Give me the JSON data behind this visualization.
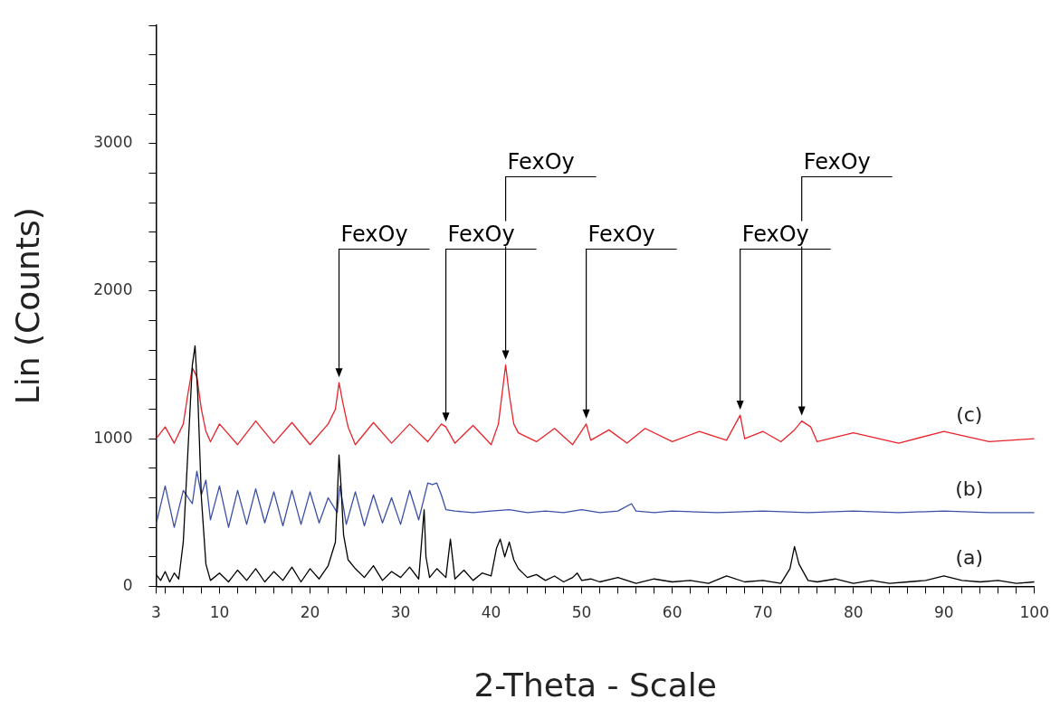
{
  "chart_data": {
    "type": "line",
    "xlabel": "2-Theta - Scale",
    "ylabel": "Lin (Counts)",
    "legend": false,
    "grid": false,
    "marker": "none",
    "line_style": "solid",
    "xlim": [
      3,
      100
    ],
    "ylim": [
      0,
      3800
    ],
    "xticks": [
      3,
      {
        "value": 4,
        "label": null
      },
      {
        "value": 6,
        "label": null
      },
      {
        "value": 8,
        "label": null
      },
      10,
      {
        "value": 12,
        "label": null
      },
      {
        "value": 14,
        "label": null
      },
      {
        "value": 16,
        "label": null
      },
      {
        "value": 18,
        "label": null
      },
      20,
      {
        "value": 22,
        "label": null
      },
      {
        "value": 24,
        "label": null
      },
      {
        "value": 26,
        "label": null
      },
      {
        "value": 28,
        "label": null
      },
      30,
      {
        "value": 32,
        "label": null
      },
      {
        "value": 34,
        "label": null
      },
      {
        "value": 36,
        "label": null
      },
      {
        "value": 38,
        "label": null
      },
      40,
      {
        "value": 42,
        "label": null
      },
      {
        "value": 44,
        "label": null
      },
      {
        "value": 46,
        "label": null
      },
      {
        "value": 48,
        "label": null
      },
      50,
      {
        "value": 52,
        "label": null
      },
      {
        "value": 54,
        "label": null
      },
      {
        "value": 56,
        "label": null
      },
      {
        "value": 58,
        "label": null
      },
      60,
      {
        "value": 62,
        "label": null
      },
      {
        "value": 64,
        "label": null
      },
      {
        "value": 66,
        "label": null
      },
      {
        "value": 68,
        "label": null
      },
      70,
      {
        "value": 72,
        "label": null
      },
      {
        "value": 74,
        "label": null
      },
      {
        "value": 76,
        "label": null
      },
      {
        "value": 78,
        "label": null
      },
      80,
      {
        "value": 82,
        "label": null
      },
      {
        "value": 84,
        "label": null
      },
      {
        "value": 86,
        "label": null
      },
      {
        "value": 88,
        "label": null
      },
      90,
      {
        "value": 92,
        "label": null
      },
      {
        "value": 94,
        "label": null
      },
      {
        "value": 96,
        "label": null
      },
      {
        "value": 98,
        "label": null
      },
      100
    ],
    "yticks": [
      0,
      {
        "value": 200,
        "label": null
      },
      {
        "value": 400,
        "label": null
      },
      {
        "value": 600,
        "label": null
      },
      {
        "value": 800,
        "label": null
      },
      1000,
      {
        "value": 1200,
        "label": null
      },
      {
        "value": 1400,
        "label": null
      },
      {
        "value": 1600,
        "label": null
      },
      {
        "value": 1800,
        "label": null
      },
      2000,
      {
        "value": 2200,
        "label": null
      },
      {
        "value": 2400,
        "label": null
      },
      {
        "value": 2600,
        "label": null
      },
      {
        "value": 2800,
        "label": null
      },
      3000,
      {
        "value": 3200,
        "label": null
      },
      {
        "value": 3400,
        "label": null
      },
      {
        "value": 3600,
        "label": null
      },
      {
        "value": 3800,
        "label": null
      }
    ],
    "annotations": [
      {
        "text": "FexOy",
        "x": 23.2,
        "y": 1380
      },
      {
        "text": "FexOy",
        "x": 35,
        "y": 1080
      },
      {
        "text": "FexOy",
        "x": 41.6,
        "y": 1500
      },
      {
        "text": "FexOy",
        "x": 50.5,
        "y": 1100
      },
      {
        "text": "FexOy",
        "x": 67.5,
        "y": 1160
      },
      {
        "text": "FexOy",
        "x": 74.3,
        "y": 1120
      }
    ],
    "series": [
      {
        "name": "(a)",
        "color": "#000000",
        "x": [
          3,
          3.5,
          4,
          4.5,
          5,
          5.5,
          6,
          6.5,
          7,
          7.3,
          7.6,
          8,
          8.5,
          9,
          10,
          11,
          12,
          13,
          14,
          15,
          16,
          17,
          18,
          19,
          20,
          21,
          22,
          22.8,
          23.2,
          23.4,
          23.7,
          24.2,
          25,
          26,
          27,
          28,
          29,
          30,
          31,
          32,
          32.6,
          32.8,
          33.2,
          34,
          35,
          35.5,
          36,
          37,
          38,
          39,
          40,
          40.6,
          41,
          41.5,
          42,
          42.5,
          43,
          44,
          45,
          46,
          47,
          48,
          49,
          49.5,
          50,
          51,
          52,
          54,
          56,
          58,
          60,
          62,
          64,
          66,
          68,
          70,
          72,
          73,
          73.5,
          74,
          75,
          76,
          78,
          80,
          82,
          84,
          86,
          88,
          90,
          92,
          94,
          96,
          98,
          100
        ],
        "values": [
          80,
          40,
          100,
          30,
          90,
          50,
          300,
          900,
          1500,
          1630,
          1300,
          600,
          150,
          40,
          90,
          30,
          110,
          40,
          120,
          30,
          100,
          40,
          130,
          30,
          120,
          50,
          140,
          300,
          890,
          700,
          350,
          180,
          120,
          60,
          140,
          40,
          100,
          60,
          130,
          50,
          520,
          200,
          60,
          120,
          60,
          320,
          50,
          110,
          40,
          90,
          70,
          260,
          320,
          200,
          300,
          180,
          120,
          60,
          80,
          40,
          70,
          30,
          60,
          90,
          40,
          50,
          30,
          60,
          20,
          50,
          30,
          40,
          20,
          70,
          30,
          40,
          20,
          120,
          270,
          150,
          40,
          30,
          50,
          20,
          40,
          20,
          30,
          40,
          70,
          40,
          30,
          40,
          20,
          30
        ]
      },
      {
        "name": "(b)",
        "color": "#3a4fa8",
        "x": [
          3,
          4,
          5,
          6,
          7,
          7.5,
          8,
          8.5,
          9,
          10,
          11,
          12,
          13,
          14,
          15,
          16,
          17,
          18,
          19,
          20,
          21,
          22,
          23,
          23.3,
          24,
          25,
          26,
          27,
          28,
          29,
          30,
          31,
          32,
          33,
          33.5,
          34,
          34.5,
          35,
          36,
          38,
          40,
          42,
          44,
          46,
          48,
          50,
          52,
          54,
          55.5,
          56,
          58,
          60,
          65,
          70,
          75,
          80,
          85,
          90,
          95,
          100
        ],
        "values": [
          420,
          680,
          400,
          650,
          560,
          780,
          620,
          720,
          450,
          680,
          400,
          650,
          420,
          660,
          430,
          640,
          410,
          650,
          420,
          640,
          430,
          600,
          500,
          680,
          420,
          640,
          410,
          620,
          430,
          600,
          420,
          650,
          450,
          700,
          690,
          700,
          620,
          520,
          510,
          500,
          510,
          520,
          500,
          510,
          500,
          520,
          500,
          510,
          560,
          510,
          500,
          510,
          500,
          510,
          500,
          510,
          500,
          510,
          500,
          500
        ]
      },
      {
        "name": "(c)",
        "color": "#e8232a",
        "x": [
          3,
          4,
          5,
          6,
          6.5,
          7,
          7.5,
          8,
          8.5,
          9,
          10,
          12,
          14,
          16,
          18,
          20,
          22,
          22.8,
          23.2,
          23.6,
          24.2,
          25,
          27,
          29,
          31,
          33,
          34.5,
          35,
          36,
          38,
          40,
          40.8,
          41.3,
          41.6,
          42,
          42.5,
          43,
          45,
          47,
          49,
          50.5,
          51,
          53,
          55,
          57,
          60,
          63,
          66,
          67.5,
          68,
          70,
          72,
          73.5,
          74.3,
          75.3,
          76,
          80,
          85,
          90,
          95,
          100
        ],
        "values": [
          1000,
          1080,
          970,
          1100,
          1300,
          1480,
          1420,
          1200,
          1050,
          980,
          1100,
          960,
          1120,
          970,
          1110,
          960,
          1100,
          1200,
          1380,
          1250,
          1080,
          960,
          1110,
          970,
          1100,
          980,
          1100,
          1080,
          970,
          1090,
          960,
          1100,
          1350,
          1500,
          1300,
          1100,
          1040,
          980,
          1070,
          960,
          1100,
          990,
          1060,
          970,
          1070,
          980,
          1050,
          990,
          1160,
          1000,
          1050,
          980,
          1060,
          1120,
          1080,
          980,
          1040,
          970,
          1050,
          980,
          1000
        ]
      }
    ]
  }
}
